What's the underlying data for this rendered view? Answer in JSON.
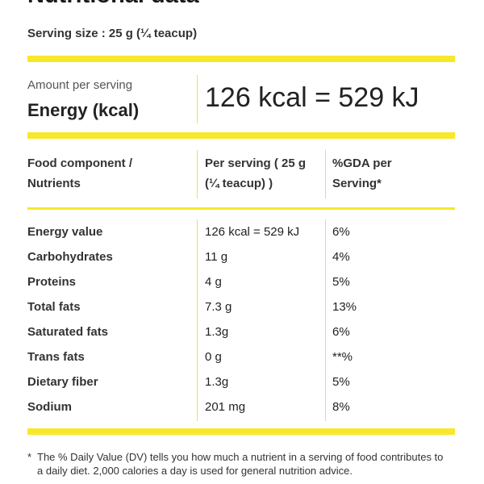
{
  "title": "Nutritional data",
  "serving_size": "Serving size : 25 g (¼ teacup)",
  "energy": {
    "amount_label": "Amount per serving",
    "label": "Energy (kcal)",
    "value": "126 kcal = 529 kJ"
  },
  "table": {
    "headers": {
      "component": [
        "Food component /",
        "Nutrients"
      ],
      "per_serving": [
        "Per serving ( 25 g",
        "(¼ teacup) )"
      ],
      "gda": [
        "%GDA per",
        "Serving*"
      ]
    },
    "rows": [
      {
        "name": "Energy value",
        "serving": "126 kcal = 529 kJ",
        "gda": "6%"
      },
      {
        "name": "Carbohydrates",
        "serving": "11 g",
        "gda": "4%"
      },
      {
        "name": "Proteins",
        "serving": "4 g",
        "gda": "5%"
      },
      {
        "name": "Total fats",
        "serving": "7.3 g",
        "gda": "13%"
      },
      {
        "name": "Saturated fats",
        "serving": "1.3g",
        "gda": "6%"
      },
      {
        "name": "Trans fats",
        "serving": "0 g",
        "gda": "**%"
      },
      {
        "name": "Dietary fiber",
        "serving": "1.3g",
        "gda": "5%"
      },
      {
        "name": "Sodium",
        "serving": "201 mg",
        "gda": "8%"
      }
    ]
  },
  "footnote": {
    "marker": "*",
    "text": "The % Daily Value (DV) tells you how much a nutrient in a serving of food contributes to a daily diet. 2,000 calories a day is used for general nutrition advice."
  },
  "colors": {
    "accent": "#f7e82a"
  }
}
